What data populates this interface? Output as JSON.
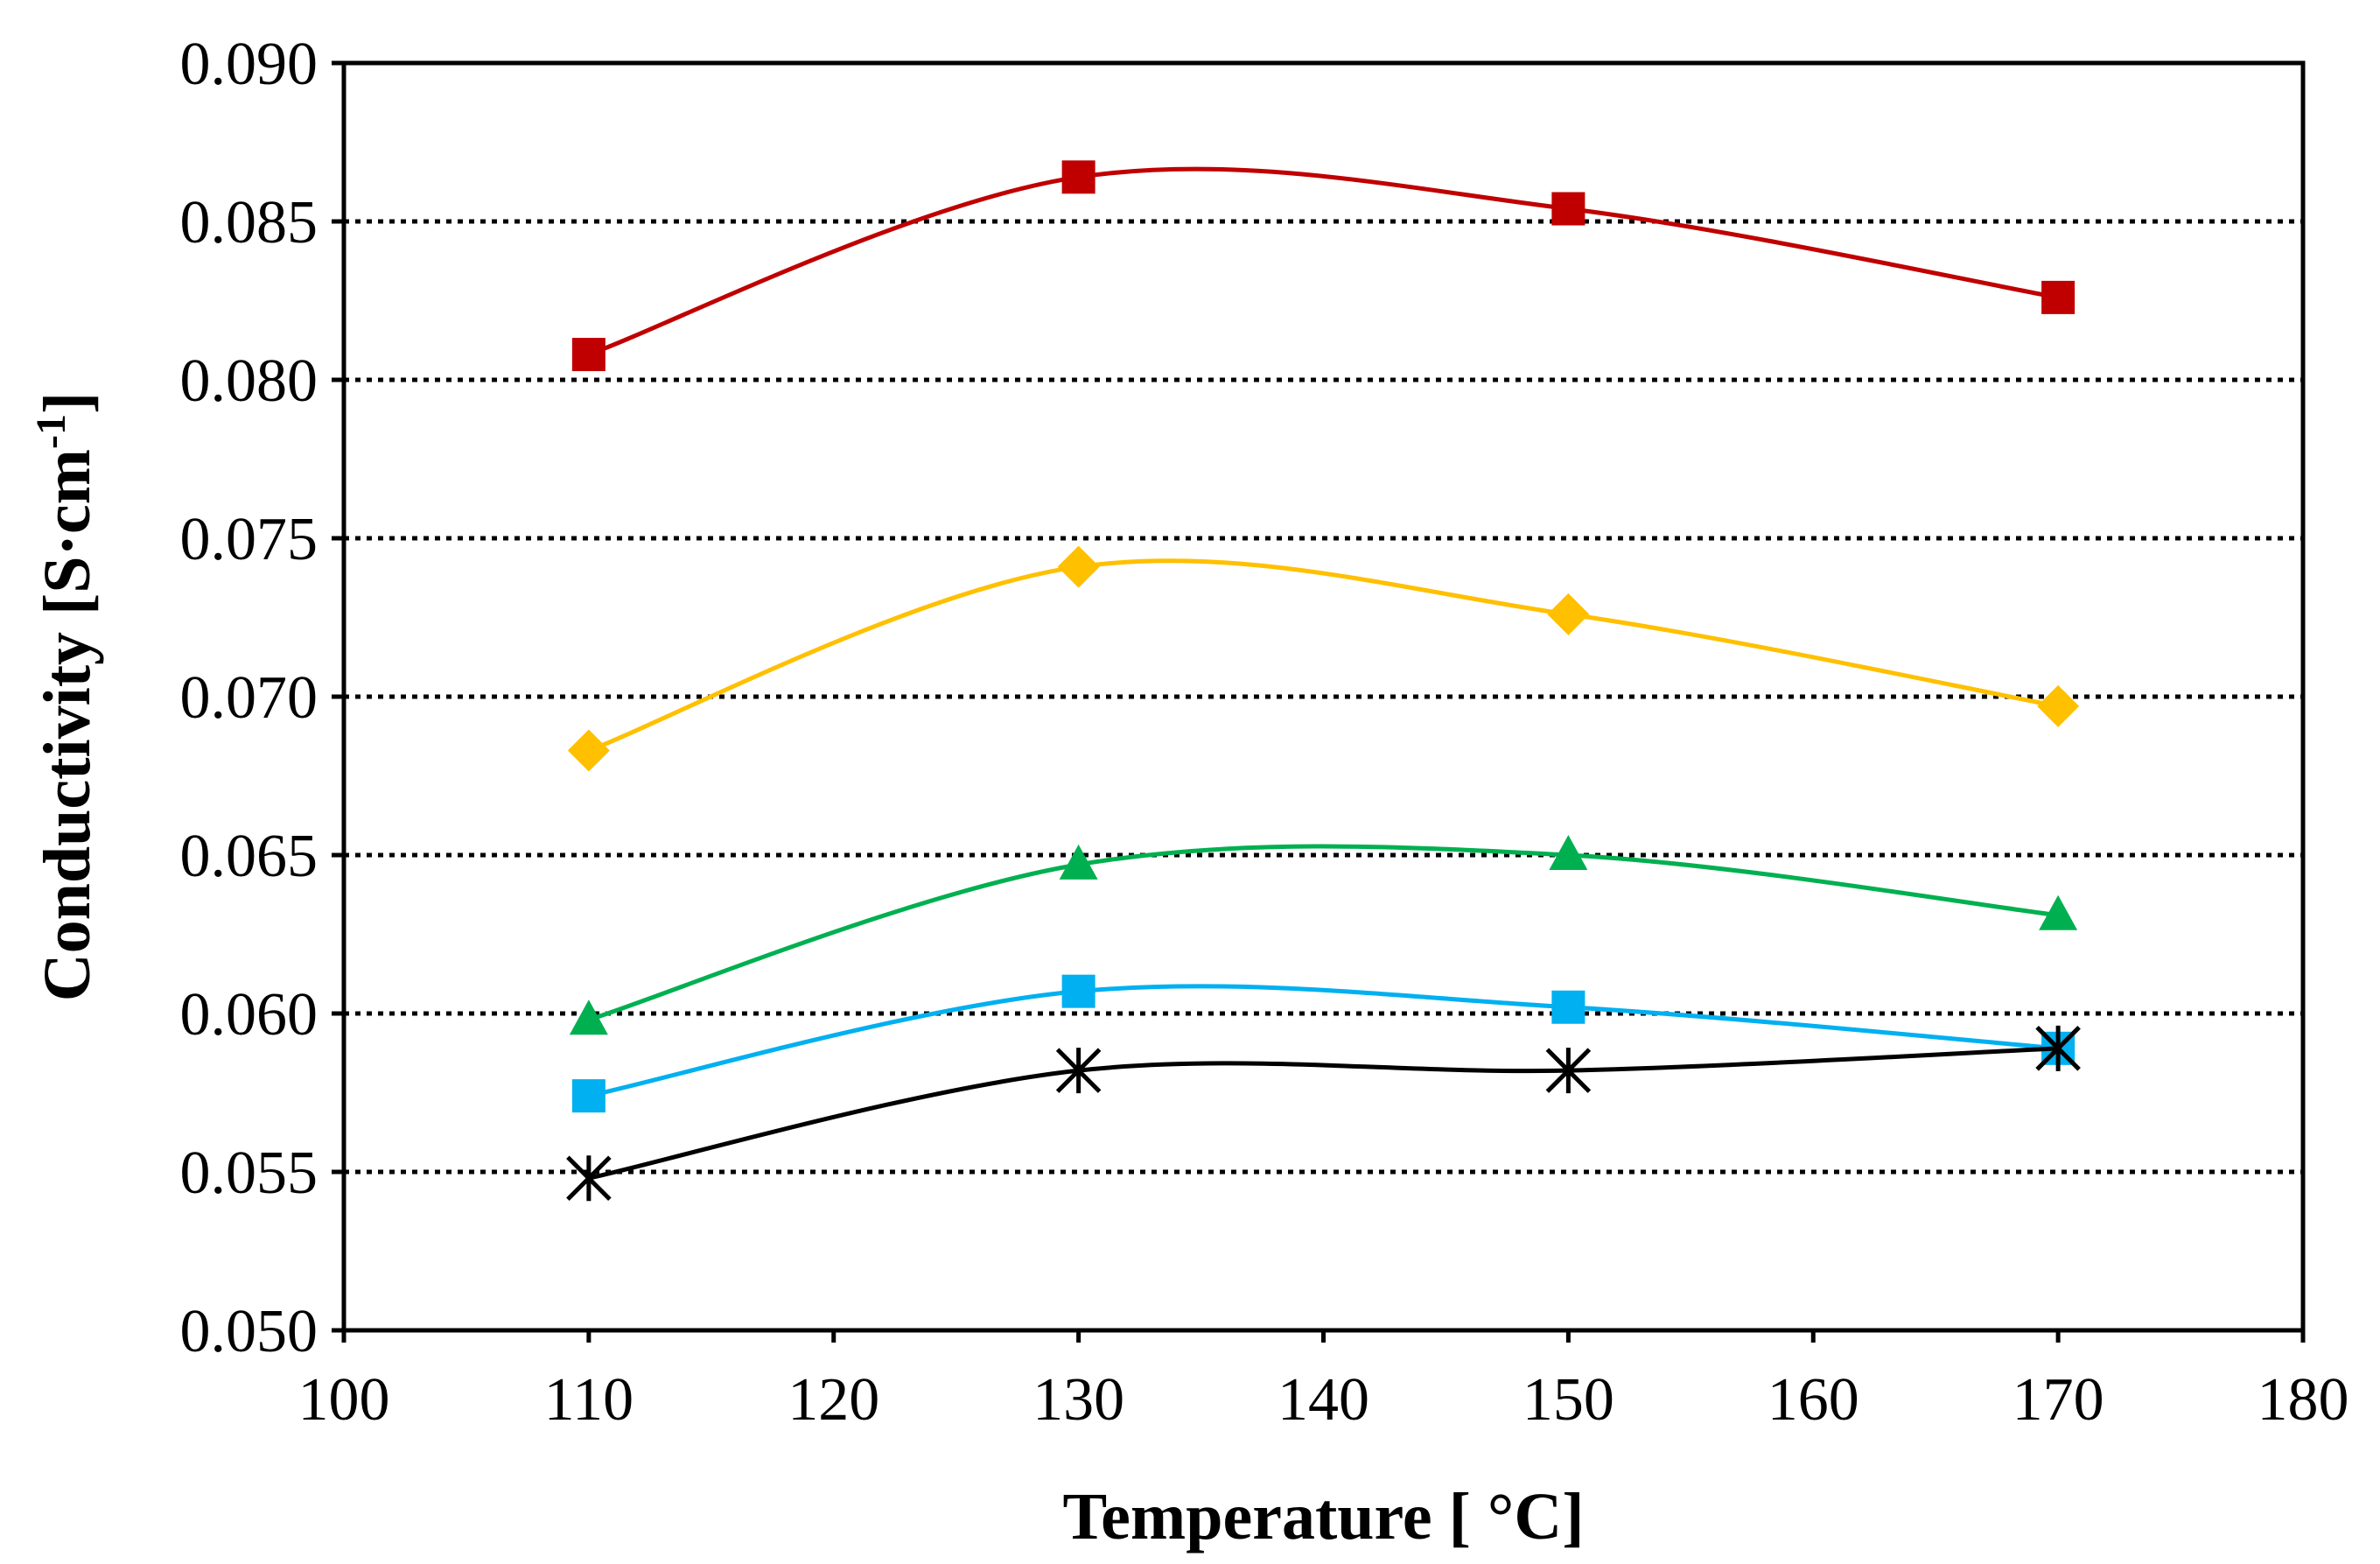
{
  "chart_data": {
    "type": "line",
    "title": "",
    "xlabel": "Temperature [ °C]",
    "ylabel_main": "Conductivity [S·cm",
    "ylabel_sup": "-1",
    "ylabel_close": "]",
    "xlim": [
      100,
      180
    ],
    "ylim": [
      0.05,
      0.09
    ],
    "xticks": [
      100,
      110,
      120,
      130,
      140,
      150,
      160,
      170,
      180
    ],
    "xtick_labels": [
      "100",
      "110",
      "120",
      "130",
      "140",
      "150",
      "160",
      "170",
      "180"
    ],
    "yticks": [
      0.05,
      0.055,
      0.06,
      0.065,
      0.07,
      0.075,
      0.08,
      0.085,
      0.09
    ],
    "ytick_labels": [
      "0.050",
      "0.055",
      "0.060",
      "0.065",
      "0.070",
      "0.075",
      "0.080",
      "0.085",
      "0.090"
    ],
    "grid": "horizontal dotted",
    "legend": "none",
    "x": [
      110,
      130,
      150,
      170
    ],
    "series": [
      {
        "name": "red-squares",
        "marker": "square",
        "color": "#C00000",
        "values": [
          0.0808,
          0.0864,
          0.0854,
          0.0826
        ]
      },
      {
        "name": "orange-diamonds",
        "marker": "diamond",
        "color": "#FFC000",
        "values": [
          0.0683,
          0.0741,
          0.0726,
          0.0697
        ]
      },
      {
        "name": "green-triangles",
        "marker": "triangle",
        "color": "#00B050",
        "values": [
          0.0598,
          0.0647,
          0.065,
          0.0631
        ]
      },
      {
        "name": "blue-squares",
        "marker": "square",
        "color": "#00B0F0",
        "values": [
          0.0574,
          0.0607,
          0.0602,
          0.0589
        ]
      },
      {
        "name": "black-stars",
        "marker": "star",
        "color": "#000000",
        "values": [
          0.0548,
          0.0582,
          0.0582,
          0.0589
        ]
      }
    ]
  }
}
